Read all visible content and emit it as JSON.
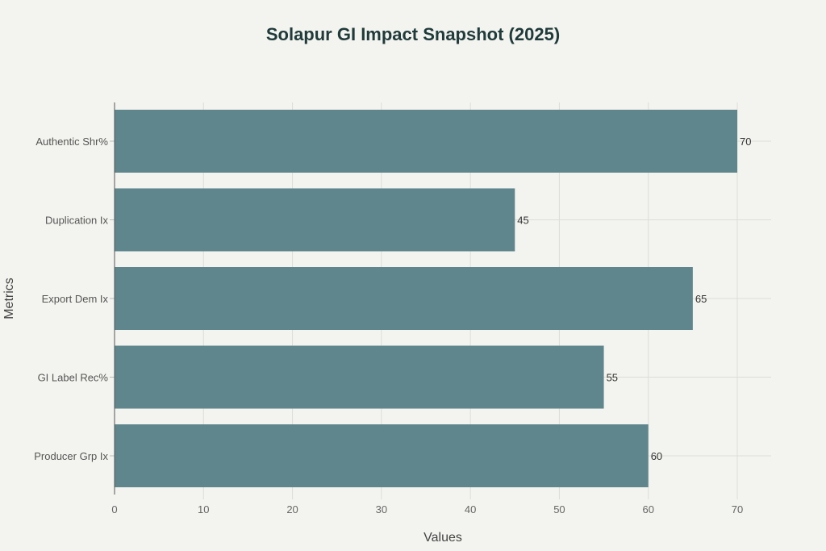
{
  "chart_data": {
    "type": "bar",
    "orientation": "horizontal",
    "title": "Solapur GI Impact Snapshot (2025)",
    "xlabel": "Values",
    "ylabel": "Metrics",
    "categories": [
      "Authentic Shr%",
      "Duplication Ix",
      "Export Dem Ix",
      "GI Label Rec%",
      "Producer Grp Ix"
    ],
    "values": [
      70,
      45,
      65,
      55,
      60
    ],
    "xlim": [
      0,
      74
    ],
    "xticks": [
      0,
      10,
      20,
      30,
      40,
      50,
      60,
      70
    ],
    "grid": true,
    "legend": "none",
    "colors": {
      "bar": "#5e868c",
      "background": "#f3f3ef",
      "grid": "#dcdcd8",
      "title": "#1f3b3a"
    }
  }
}
